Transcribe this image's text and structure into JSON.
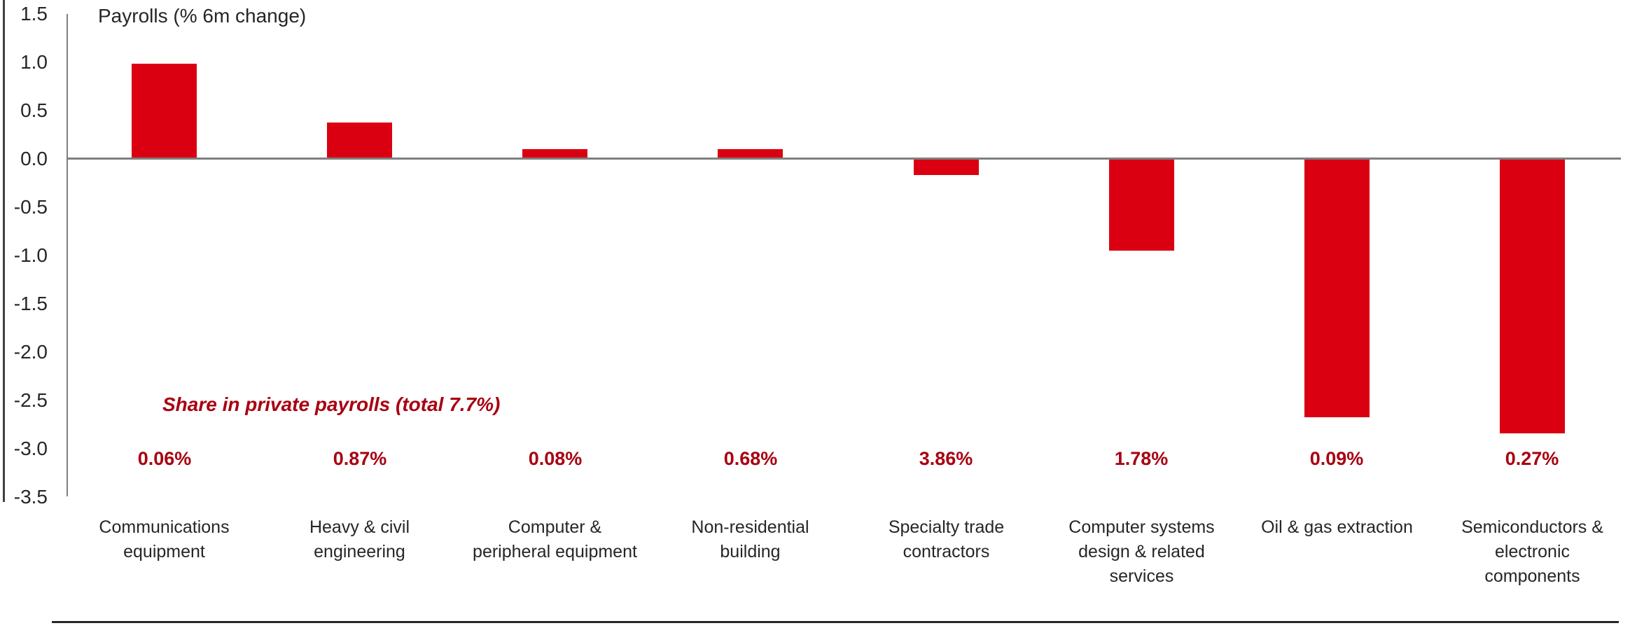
{
  "chart_data": {
    "type": "bar",
    "title": "Payrolls (% 6m change)",
    "categories": [
      "Communications equipment",
      "Heavy & civil engineering",
      "Computer & peripheral equipment",
      "Non-residential building",
      "Specialty trade contractors",
      "Computer systems design & related services",
      "Oil & gas extraction",
      "Semiconductors & electronic components"
    ],
    "values": [
      0.97,
      0.36,
      0.09,
      0.09,
      -0.16,
      -0.94,
      -2.67,
      -2.83
    ],
    "ylim": [
      -3.5,
      1.5
    ],
    "ytick_labels": [
      "1.5",
      "1.0",
      "0.5",
      "0.0",
      "-0.5",
      "-1.0",
      "-1.5",
      "-2.0",
      "-2.5",
      "-3.0",
      "-3.5"
    ],
    "grid": "zero-line-only",
    "legend": "none",
    "share_caption": "Share in private payrolls (total 7.7%)",
    "share_values": [
      "0.06%",
      "0.87%",
      "0.08%",
      "0.68%",
      "3.86%",
      "1.78%",
      "0.09%",
      "0.27%"
    ],
    "colors": {
      "bar": "#DB0011",
      "share_text": "#A80011",
      "axis": "#7F7F7F",
      "text": "#262626",
      "left_border": "#404040",
      "bottom_border": "#262626"
    }
  }
}
